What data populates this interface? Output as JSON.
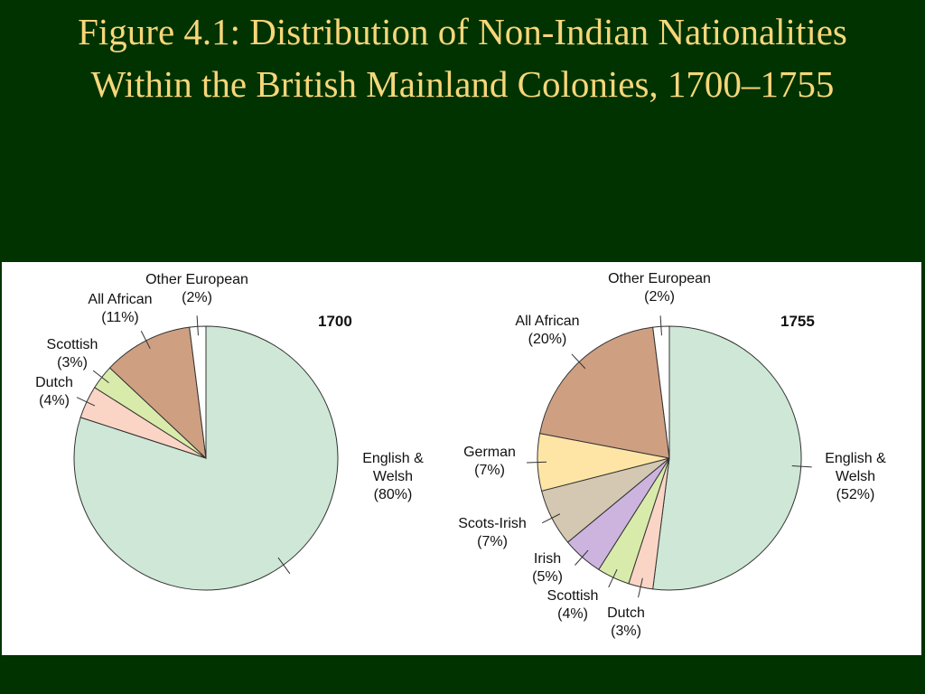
{
  "title": "Figure 4.1: Distribution of Non-Indian Nationalities Within the British Mainland Colonies, 1700–1755",
  "chart_data": [
    {
      "type": "pie",
      "title": "1700",
      "categories": [
        "English & Welsh",
        "Dutch",
        "Scottish",
        "All African",
        "Other European"
      ],
      "values": [
        80,
        4,
        3,
        11,
        2
      ],
      "value_labels": [
        "(80%)",
        "(4%)",
        "(3%)",
        "(11%)",
        "(2%)"
      ],
      "colors": [
        "#cfe7d6",
        "#fad5c5",
        "#d9ebaa",
        "#cf9f82",
        "#ffffff"
      ]
    },
    {
      "type": "pie",
      "title": "1755",
      "categories": [
        "English & Welsh",
        "Dutch",
        "Scottish",
        "Irish",
        "Scots-Irish",
        "German",
        "All African",
        "Other European"
      ],
      "values": [
        52,
        3,
        4,
        5,
        7,
        7,
        20,
        2
      ],
      "value_labels": [
        "(52%)",
        "(3%)",
        "(4%)",
        "(5%)",
        "(7%)",
        "(7%)",
        "(20%)",
        "(2%)"
      ],
      "colors": [
        "#cfe7d6",
        "#fad5c5",
        "#d9ebaa",
        "#cdb4df",
        "#d4c8b2",
        "#fee5a6",
        "#cf9f82",
        "#ffffff"
      ]
    }
  ]
}
